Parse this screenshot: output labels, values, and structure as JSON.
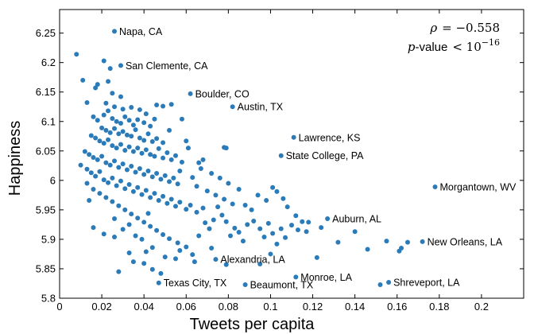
{
  "chart_data": {
    "type": "scatter",
    "xlabel": "Tweets per capita",
    "ylabel": "Happiness",
    "xlim": [
      0,
      0.22
    ],
    "ylim": [
      5.8,
      6.29
    ],
    "xticks": [
      0,
      0.02,
      0.04,
      0.06,
      0.08,
      0.1,
      0.12,
      0.14,
      0.16,
      0.18,
      0.2
    ],
    "xtick_labels": [
      "0",
      "0.02",
      "0.04",
      "0.06",
      "0.08",
      "0.1",
      "0.12",
      "0.14",
      "0.16",
      "0.18",
      "0.2"
    ],
    "yticks": [
      5.8,
      5.85,
      5.9,
      5.95,
      6.0,
      6.05,
      6.1,
      6.15,
      6.2,
      6.25
    ],
    "ytick_labels": [
      "5.8",
      "5.85",
      "5.9",
      "5.95",
      "6",
      "6.05",
      "6.1",
      "6.15",
      "6.2",
      "6.25"
    ],
    "grid": false,
    "marker_color": "#2b7bb9",
    "annotation": {
      "rho_symbol": "ρ",
      "rho_value": "= −0.558",
      "p_symbol": "p",
      "p_text": "-value",
      "p_relation": "< 10",
      "p_exponent": "−16"
    },
    "labeled_points": [
      {
        "label": "Napa, CA",
        "x": 0.026,
        "y": 6.253
      },
      {
        "label": "San Clemente, CA",
        "x": 0.029,
        "y": 6.195
      },
      {
        "label": "Boulder, CO",
        "x": 0.062,
        "y": 6.147
      },
      {
        "label": "Austin, TX",
        "x": 0.082,
        "y": 6.125
      },
      {
        "label": "Lawrence, KS",
        "x": 0.111,
        "y": 6.073
      },
      {
        "label": "State College, PA",
        "x": 0.105,
        "y": 6.042
      },
      {
        "label": "Morgantown, WV",
        "x": 0.178,
        "y": 5.989
      },
      {
        "label": "Auburn, AL",
        "x": 0.127,
        "y": 5.935
      },
      {
        "label": "New Orleans, LA",
        "x": 0.172,
        "y": 5.896
      },
      {
        "label": "Alexandria, LA",
        "x": 0.074,
        "y": 5.866
      },
      {
        "label": "Monroe, LA",
        "x": 0.112,
        "y": 5.836
      },
      {
        "label": "Texas City, TX",
        "x": 0.047,
        "y": 5.826
      },
      {
        "label": "Beaumont, TX",
        "x": 0.088,
        "y": 5.823
      },
      {
        "label": "Shreveport, LA",
        "x": 0.156,
        "y": 5.827
      }
    ],
    "points": [
      [
        0.008,
        6.214
      ],
      [
        0.021,
        6.203
      ],
      [
        0.024,
        6.19
      ],
      [
        0.011,
        6.17
      ],
      [
        0.017,
        6.157
      ],
      [
        0.018,
        6.163
      ],
      [
        0.023,
        6.168
      ],
      [
        0.025,
        6.148
      ],
      [
        0.029,
        6.142
      ],
      [
        0.022,
        6.131
      ],
      [
        0.026,
        6.125
      ],
      [
        0.03,
        6.121
      ],
      [
        0.034,
        6.124
      ],
      [
        0.038,
        6.12
      ],
      [
        0.041,
        6.113
      ],
      [
        0.046,
        6.128
      ],
      [
        0.053,
        6.129
      ],
      [
        0.013,
        6.132
      ],
      [
        0.016,
        6.108
      ],
      [
        0.018,
        6.102
      ],
      [
        0.021,
        6.111
      ],
      [
        0.023,
        6.118
      ],
      [
        0.025,
        6.105
      ],
      [
        0.027,
        6.1
      ],
      [
        0.029,
        6.097
      ],
      [
        0.031,
        6.108
      ],
      [
        0.033,
        6.102
      ],
      [
        0.035,
        6.094
      ],
      [
        0.037,
        6.103
      ],
      [
        0.04,
        6.098
      ],
      [
        0.043,
        6.092
      ],
      [
        0.045,
        6.104
      ],
      [
        0.02,
        6.089
      ],
      [
        0.022,
        6.085
      ],
      [
        0.024,
        6.081
      ],
      [
        0.026,
        6.088
      ],
      [
        0.028,
        6.079
      ],
      [
        0.03,
        6.083
      ],
      [
        0.032,
        6.077
      ],
      [
        0.034,
        6.075
      ],
      [
        0.036,
        6.086
      ],
      [
        0.038,
        6.072
      ],
      [
        0.04,
        6.068
      ],
      [
        0.042,
        6.079
      ],
      [
        0.044,
        6.066
      ],
      [
        0.046,
        6.071
      ],
      [
        0.049,
        6.064
      ],
      [
        0.015,
        6.076
      ],
      [
        0.017,
        6.072
      ],
      [
        0.019,
        6.067
      ],
      [
        0.021,
        6.063
      ],
      [
        0.023,
        6.069
      ],
      [
        0.025,
        6.059
      ],
      [
        0.027,
        6.055
      ],
      [
        0.029,
        6.061
      ],
      [
        0.031,
        6.051
      ],
      [
        0.033,
        6.057
      ],
      [
        0.035,
        6.049
      ],
      [
        0.037,
        6.055
      ],
      [
        0.039,
        6.046
      ],
      [
        0.041,
        6.052
      ],
      [
        0.043,
        6.044
      ],
      [
        0.045,
        6.041
      ],
      [
        0.047,
        6.054
      ],
      [
        0.049,
        6.038
      ],
      [
        0.051,
        6.047
      ],
      [
        0.053,
        6.035
      ],
      [
        0.055,
        6.042
      ],
      [
        0.058,
        6.031
      ],
      [
        0.012,
        6.049
      ],
      [
        0.014,
        6.044
      ],
      [
        0.016,
        6.039
      ],
      [
        0.018,
        6.035
      ],
      [
        0.02,
        6.041
      ],
      [
        0.022,
        6.03
      ],
      [
        0.024,
        6.026
      ],
      [
        0.026,
        6.033
      ],
      [
        0.028,
        6.022
      ],
      [
        0.03,
        6.028
      ],
      [
        0.032,
        6.018
      ],
      [
        0.034,
        6.024
      ],
      [
        0.036,
        6.014
      ],
      [
        0.038,
        6.02
      ],
      [
        0.04,
        6.01
      ],
      [
        0.042,
        6.016
      ],
      [
        0.044,
        6.006
      ],
      [
        0.046,
        6.012
      ],
      [
        0.048,
        6.002
      ],
      [
        0.05,
        6.008
      ],
      [
        0.052,
        5.998
      ],
      [
        0.054,
        6.004
      ],
      [
        0.056,
        5.994
      ],
      [
        0.01,
        6.026
      ],
      [
        0.013,
        6.019
      ],
      [
        0.015,
        6.013
      ],
      [
        0.017,
        6.007
      ],
      [
        0.019,
        6.015
      ],
      [
        0.021,
        6.001
      ],
      [
        0.023,
        5.996
      ],
      [
        0.025,
        6.004
      ],
      [
        0.027,
        5.991
      ],
      [
        0.029,
        5.999
      ],
      [
        0.031,
        5.986
      ],
      [
        0.033,
        5.993
      ],
      [
        0.035,
        5.981
      ],
      [
        0.037,
        5.988
      ],
      [
        0.039,
        5.976
      ],
      [
        0.041,
        5.983
      ],
      [
        0.043,
        5.971
      ],
      [
        0.045,
        5.978
      ],
      [
        0.047,
        5.966
      ],
      [
        0.049,
        5.973
      ],
      [
        0.051,
        5.961
      ],
      [
        0.053,
        5.968
      ],
      [
        0.055,
        5.956
      ],
      [
        0.057,
        5.963
      ],
      [
        0.06,
        5.951
      ],
      [
        0.062,
        5.958
      ],
      [
        0.065,
        5.946
      ],
      [
        0.068,
        5.953
      ],
      [
        0.016,
        5.985
      ],
      [
        0.019,
        5.978
      ],
      [
        0.022,
        5.971
      ],
      [
        0.025,
        5.964
      ],
      [
        0.028,
        5.957
      ],
      [
        0.031,
        5.95
      ],
      [
        0.034,
        5.943
      ],
      [
        0.037,
        5.936
      ],
      [
        0.04,
        5.929
      ],
      [
        0.043,
        5.922
      ],
      [
        0.046,
        5.915
      ],
      [
        0.049,
        5.908
      ],
      [
        0.052,
        5.901
      ],
      [
        0.056,
        5.894
      ],
      [
        0.06,
        5.887
      ],
      [
        0.014,
        5.966
      ],
      [
        0.013,
        5.995
      ],
      [
        0.016,
        5.92
      ],
      [
        0.021,
        5.909
      ],
      [
        0.026,
        5.935
      ],
      [
        0.03,
        5.917
      ],
      [
        0.033,
        5.925
      ],
      [
        0.036,
        5.906
      ],
      [
        0.039,
        5.9
      ],
      [
        0.042,
        5.944
      ],
      [
        0.044,
        5.886
      ],
      [
        0.05,
        5.87
      ],
      [
        0.057,
        5.881
      ],
      [
        0.063,
        5.874
      ],
      [
        0.066,
        5.906
      ],
      [
        0.069,
        5.928
      ],
      [
        0.071,
        5.918
      ],
      [
        0.073,
        5.933
      ],
      [
        0.075,
        5.955
      ],
      [
        0.077,
        5.941
      ],
      [
        0.079,
        5.93
      ],
      [
        0.081,
        5.906
      ],
      [
        0.083,
        5.919
      ],
      [
        0.085,
        5.912
      ],
      [
        0.087,
        5.897
      ],
      [
        0.089,
        5.925
      ],
      [
        0.092,
        5.931
      ],
      [
        0.095,
        5.918
      ],
      [
        0.097,
        5.904
      ],
      [
        0.099,
        5.927
      ],
      [
        0.101,
        5.91
      ],
      [
        0.103,
        5.892
      ],
      [
        0.105,
        5.918
      ],
      [
        0.107,
        5.903
      ],
      [
        0.11,
        5.924
      ],
      [
        0.113,
        5.916
      ],
      [
        0.115,
        5.93
      ],
      [
        0.117,
        5.913
      ],
      [
        0.063,
        6.005
      ],
      [
        0.065,
        5.99
      ],
      [
        0.067,
        6.02
      ],
      [
        0.07,
        5.982
      ],
      [
        0.072,
        6.012
      ],
      [
        0.074,
        5.975
      ],
      [
        0.076,
        6.004
      ],
      [
        0.078,
        5.968
      ],
      [
        0.08,
        5.995
      ],
      [
        0.082,
        5.96
      ],
      [
        0.085,
        5.985
      ],
      [
        0.088,
        5.958
      ],
      [
        0.091,
        5.95
      ],
      [
        0.094,
        5.975
      ],
      [
        0.098,
        5.966
      ],
      [
        0.101,
        5.988
      ],
      [
        0.103,
        5.981
      ],
      [
        0.106,
        5.969
      ],
      [
        0.108,
        5.955
      ],
      [
        0.112,
        5.94
      ],
      [
        0.118,
        5.929
      ],
      [
        0.124,
        5.92
      ],
      [
        0.132,
        5.895
      ],
      [
        0.14,
        5.913
      ],
      [
        0.146,
        5.883
      ],
      [
        0.161,
        5.88
      ],
      [
        0.162,
        5.885
      ],
      [
        0.155,
        5.897
      ],
      [
        0.165,
        5.895
      ],
      [
        0.152,
        5.823
      ],
      [
        0.122,
        5.869
      ],
      [
        0.1,
        5.875
      ],
      [
        0.095,
        5.858
      ],
      [
        0.079,
        5.857
      ],
      [
        0.072,
        5.885
      ],
      [
        0.078,
        6.056
      ],
      [
        0.079,
        6.055
      ],
      [
        0.068,
        6.035
      ],
      [
        0.06,
        6.067
      ],
      [
        0.061,
        6.055
      ],
      [
        0.058,
        6.104
      ],
      [
        0.052,
        6.085
      ],
      [
        0.049,
        6.126
      ],
      [
        0.057,
        6.016
      ],
      [
        0.066,
        6.03
      ],
      [
        0.048,
        5.842
      ],
      [
        0.04,
        5.859
      ],
      [
        0.033,
        5.877
      ],
      [
        0.028,
        5.845
      ],
      [
        0.041,
        5.879
      ],
      [
        0.026,
        5.904
      ],
      [
        0.035,
        5.862
      ],
      [
        0.044,
        5.849
      ],
      [
        0.064,
        5.862
      ],
      [
        0.055,
        5.867
      ]
    ]
  }
}
